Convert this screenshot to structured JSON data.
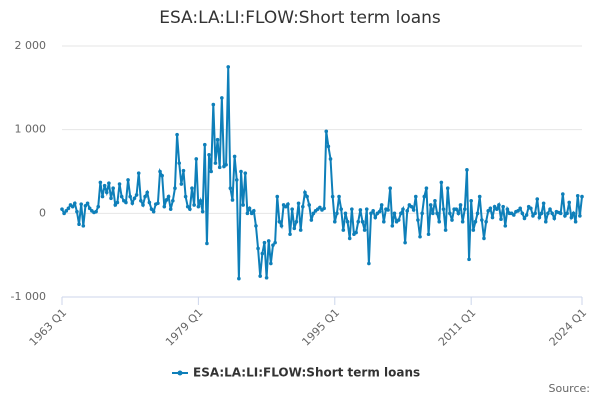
{
  "chart_data": {
    "type": "line",
    "title": "ESA:LA:LI:FLOW:Short term loans",
    "source": "Source:",
    "categories": [
      "1963 Q1",
      null,
      null,
      null,
      null,
      null,
      null,
      null,
      null,
      null,
      null,
      null,
      null,
      null,
      null,
      null,
      null,
      null,
      null,
      null,
      null,
      null,
      null,
      null,
      null,
      null,
      null,
      null,
      null,
      null,
      null,
      null,
      null,
      null,
      null,
      null,
      null,
      null,
      null,
      null,
      null,
      null,
      null,
      null,
      null,
      null,
      null,
      null,
      null,
      null,
      null,
      null,
      null,
      null,
      null,
      null,
      null,
      null,
      null,
      null,
      null,
      null,
      null,
      null,
      "1979 Q1",
      null,
      null,
      null,
      null,
      null,
      null,
      null,
      null,
      null,
      null,
      null,
      null,
      null,
      null,
      null,
      null,
      null,
      null,
      null,
      null,
      null,
      null,
      null,
      null,
      null,
      null,
      null,
      null,
      null,
      null,
      null,
      null,
      null,
      null,
      null,
      null,
      null,
      null,
      null,
      null,
      null,
      null,
      null,
      null,
      null,
      null,
      null,
      null,
      null,
      null,
      null,
      null,
      null,
      null,
      null,
      null,
      null,
      null,
      null,
      null,
      null,
      null,
      null,
      "1995 Q1",
      null,
      null,
      null,
      null,
      null,
      null,
      null,
      null,
      null,
      null,
      null,
      null,
      null,
      null,
      null,
      null,
      null,
      null,
      null,
      null,
      null,
      null,
      null,
      null,
      null,
      null,
      null,
      null,
      null,
      null,
      null,
      null,
      null,
      null,
      null,
      null,
      null,
      null,
      null,
      null,
      null,
      null,
      null,
      null,
      null,
      null,
      null,
      null,
      null,
      null,
      null,
      null,
      null,
      null,
      null,
      null,
      null,
      null,
      null,
      null,
      null,
      null,
      null,
      "2011 Q1",
      null,
      null,
      null,
      null,
      null,
      null,
      null,
      null,
      null,
      null,
      null,
      null,
      null,
      null,
      null,
      null,
      null,
      null,
      null,
      null,
      null,
      null,
      null,
      null,
      null,
      null,
      null,
      null,
      null,
      null,
      null,
      null,
      null,
      null,
      null,
      null,
      null,
      null,
      null,
      null,
      null,
      null,
      null,
      null,
      null,
      null,
      null,
      null,
      null,
      null,
      null,
      "2024 Q1"
    ],
    "series": [
      {
        "name": "ESA:LA:LI:FLOW:Short term loans",
        "color": "#0e7fb9",
        "values": [
          50,
          0,
          30,
          60,
          100,
          80,
          120,
          20,
          -130,
          110,
          -150,
          90,
          120,
          60,
          30,
          10,
          20,
          80,
          370,
          200,
          330,
          250,
          360,
          180,
          300,
          100,
          130,
          350,
          200,
          150,
          130,
          400,
          200,
          120,
          180,
          220,
          480,
          150,
          100,
          200,
          250,
          130,
          50,
          20,
          110,
          120,
          500,
          450,
          80,
          160,
          200,
          50,
          150,
          300,
          940,
          600,
          350,
          510,
          200,
          80,
          50,
          300,
          100,
          650,
          80,
          150,
          20,
          820,
          -360,
          700,
          500,
          1300,
          600,
          880,
          550,
          1380,
          560,
          580,
          1750,
          300,
          160,
          680,
          400,
          -780,
          500,
          100,
          480,
          0,
          60,
          0,
          30,
          -150,
          -420,
          -750,
          -480,
          -350,
          -770,
          -330,
          -600,
          -380,
          -350,
          200,
          -100,
          -150,
          100,
          80,
          110,
          -250,
          50,
          -180,
          -100,
          120,
          -200,
          80,
          250,
          200,
          100,
          -80,
          0,
          30,
          50,
          70,
          40,
          60,
          980,
          800,
          650,
          200,
          -100,
          0,
          200,
          50,
          -200,
          0,
          -100,
          -300,
          50,
          -250,
          -230,
          -100,
          40,
          -100,
          -200,
          50,
          -600,
          0,
          30,
          -50,
          0,
          20,
          100,
          -100,
          50,
          40,
          300,
          -150,
          0,
          -100,
          -80,
          0,
          50,
          -350,
          30,
          100,
          80,
          40,
          200,
          -80,
          -280,
          0,
          200,
          300,
          -250,
          100,
          0,
          150,
          0,
          -100,
          370,
          50,
          -200,
          300,
          0,
          -80,
          50,
          50,
          0,
          100,
          -100,
          50,
          520,
          -550,
          150,
          -200,
          -100,
          0,
          200,
          -80,
          -300,
          -100,
          30,
          60,
          -50,
          80,
          50,
          100,
          -70,
          80,
          -150,
          50,
          0,
          0,
          -20,
          20,
          30,
          60,
          0,
          -60,
          -20,
          80,
          60,
          -30,
          0,
          170,
          -50,
          0,
          120,
          -100,
          0,
          50,
          0,
          -60,
          20,
          10,
          0,
          230,
          -30,
          0,
          130,
          -50,
          0,
          -100,
          210,
          -30,
          200
        ]
      }
    ],
    "ylim": [
      -1000,
      2000
    ],
    "yticks": [
      {
        "value": -1000,
        "label": "-1 000"
      },
      0,
      {
        "value": 1000,
        "label": "1 000"
      },
      {
        "value": 2000,
        "label": "2 000"
      }
    ],
    "grid": true
  }
}
